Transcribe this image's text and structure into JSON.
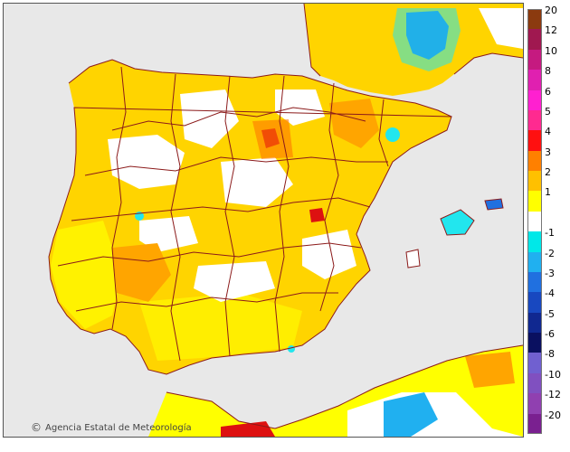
{
  "credit": {
    "symbol": "©",
    "text": "Agencia Estatal de Meteorología"
  },
  "legend": {
    "colors": {
      "land_neutral": "#ffffff",
      "sea": "#e8e8e8",
      "border": "#8b1a1a",
      "anom_1": "#ffff00",
      "anom_2": "#ffd400",
      "anom_3": "#ffa500",
      "anom_4": "#ff7700",
      "anom_5": "#dd1111",
      "neg_1": "#22e6ee",
      "neg_2": "#1e90ff"
    },
    "bands": [
      {
        "label": "20",
        "color": "#8b3a0f"
      },
      {
        "label": "12",
        "color": "#a01850"
      },
      {
        "label": "10",
        "color": "#c51a80"
      },
      {
        "label": "8",
        "color": "#e020b0"
      },
      {
        "label": "6",
        "color": "#ff20d0"
      },
      {
        "label": "5",
        "color": "#ff2a90"
      },
      {
        "label": "4",
        "color": "#ff1010"
      },
      {
        "label": "3",
        "color": "#ff8000"
      },
      {
        "label": "2",
        "color": "#ffc000"
      },
      {
        "label": "1",
        "color": "#ffff00"
      },
      {
        "label": "",
        "color": "#ffffff"
      },
      {
        "label": "-1",
        "color": "#00e8e8"
      },
      {
        "label": "-2",
        "color": "#20b0f0"
      },
      {
        "label": "-3",
        "color": "#2070e0"
      },
      {
        "label": "-4",
        "color": "#1848c0"
      },
      {
        "label": "-5",
        "color": "#102890"
      },
      {
        "label": "-6",
        "color": "#0a1060"
      },
      {
        "label": "-8",
        "color": "#7060d0"
      },
      {
        "label": "-10",
        "color": "#8050c0"
      },
      {
        "label": "-12",
        "color": "#9040b0"
      },
      {
        "label": "-20",
        "color": "#7a2090"
      }
    ]
  }
}
